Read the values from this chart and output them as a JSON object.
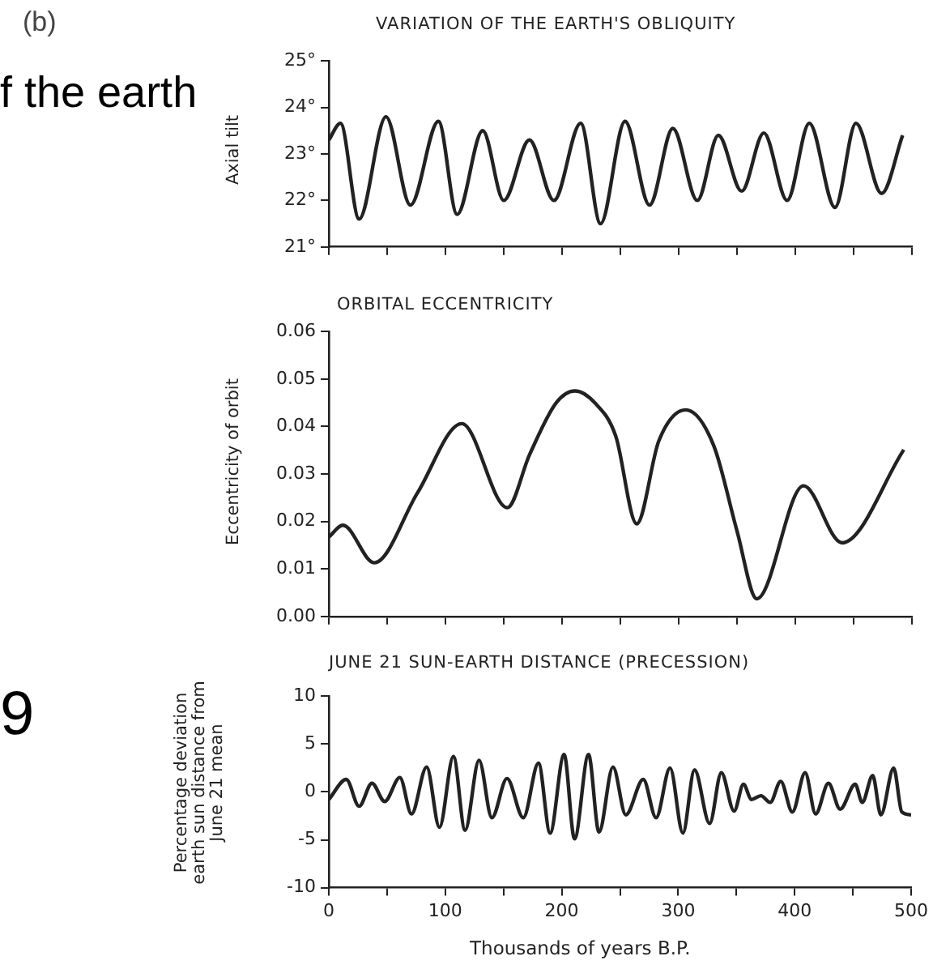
{
  "chart_data": [
    {
      "type": "line",
      "title": "VARIATION OF THE EARTH'S OBLIQUITY",
      "ylabel": "Axial tilt",
      "color": "#222222",
      "marker": "none",
      "tick_labels": "y",
      "annotations": [
        "(b)",
        "f the earth"
      ],
      "x": [
        0,
        10,
        26,
        49,
        70,
        94,
        110,
        132,
        150,
        172,
        193,
        216,
        233,
        254,
        275,
        295,
        316,
        334,
        354,
        373,
        393,
        412,
        434,
        452,
        474,
        492
      ],
      "values": [
        23.3,
        23.66,
        21.6,
        23.8,
        21.9,
        23.7,
        21.7,
        23.5,
        22.0,
        23.3,
        22.0,
        23.66,
        21.5,
        23.7,
        21.9,
        23.55,
        22.0,
        23.4,
        22.2,
        23.45,
        22.0,
        23.66,
        21.85,
        23.66,
        22.15,
        23.4
      ],
      "xlim": [
        0,
        500
      ],
      "xticks": [
        {
          "value": 0,
          "label": null
        },
        {
          "value": 50,
          "label": null
        },
        {
          "value": 100,
          "label": null
        },
        {
          "value": 150,
          "label": null
        },
        {
          "value": 200,
          "label": null
        },
        {
          "value": 250,
          "label": null
        },
        {
          "value": 300,
          "label": null
        },
        {
          "value": 350,
          "label": null
        },
        {
          "value": 400,
          "label": null
        },
        {
          "value": 450,
          "label": null
        },
        {
          "value": 500,
          "label": null
        }
      ],
      "ylim": [
        21,
        25
      ],
      "yticks": [
        {
          "value": 21,
          "label": "21°"
        },
        {
          "value": 22,
          "label": "22°"
        },
        {
          "value": 23,
          "label": "23°"
        },
        {
          "value": 24,
          "label": "24°"
        },
        {
          "value": 25,
          "label": "25°"
        }
      ]
    },
    {
      "type": "line",
      "title": "ORBITAL ECCENTRICITY",
      "ylabel": "Eccentricity of orbit",
      "color": "#222222",
      "marker": "none",
      "tick_labels": "y",
      "x": [
        0,
        12,
        39,
        76,
        114,
        153,
        172,
        195,
        211,
        228,
        246,
        264,
        283,
        306,
        330,
        350,
        367,
        407,
        440,
        493
      ],
      "values": [
        0.0167,
        0.0192,
        0.0113,
        0.026,
        0.0406,
        0.0229,
        0.034,
        0.045,
        0.0475,
        0.045,
        0.038,
        0.0195,
        0.037,
        0.0435,
        0.036,
        0.018,
        0.0037,
        0.0275,
        0.0155,
        0.0351
      ],
      "xlim": [
        0,
        500
      ],
      "xticks": [
        {
          "value": 0,
          "label": null
        },
        {
          "value": 50,
          "label": null
        },
        {
          "value": 100,
          "label": null
        },
        {
          "value": 150,
          "label": null
        },
        {
          "value": 200,
          "label": null
        },
        {
          "value": 250,
          "label": null
        },
        {
          "value": 300,
          "label": null
        },
        {
          "value": 350,
          "label": null
        },
        {
          "value": 400,
          "label": null
        },
        {
          "value": 450,
          "label": null
        },
        {
          "value": 500,
          "label": null
        }
      ],
      "ylim": [
        0,
        0.06
      ],
      "yticks": [
        {
          "value": 0,
          "label": "0.00"
        },
        {
          "value": 0.01,
          "label": "0.01"
        },
        {
          "value": 0.02,
          "label": "0.02"
        },
        {
          "value": 0.03,
          "label": "0.03"
        },
        {
          "value": 0.04,
          "label": "0.04"
        },
        {
          "value": 0.05,
          "label": "0.05"
        },
        {
          "value": 0.06,
          "label": "0.06"
        }
      ]
    },
    {
      "type": "line",
      "title": "JUNE 21 SUN-EARTH DISTANCE  (PRECESSION)",
      "ylabel": "Percentage deviation earth sun distance from June 21 mean",
      "xlabel": "Thousands of years B.P.",
      "color": "#222222",
      "marker": "none",
      "annotations": [
        "9"
      ],
      "x": [
        0,
        15,
        26,
        37,
        48,
        61,
        71,
        84,
        95,
        107,
        117,
        129,
        140,
        153,
        167,
        180,
        190,
        202,
        211,
        223,
        232,
        244,
        255,
        270,
        281,
        293,
        304,
        314,
        327,
        337,
        348,
        356,
        363,
        371,
        379,
        388,
        398,
        409,
        418,
        429,
        439,
        452,
        458,
        467,
        474,
        485,
        492,
        500
      ],
      "values": [
        -0.8,
        1.3,
        -1.5,
        0.9,
        -1.0,
        1.5,
        -2.3,
        2.6,
        -3.7,
        3.7,
        -4.0,
        3.3,
        -2.7,
        1.4,
        -2.7,
        3.0,
        -4.3,
        3.9,
        -4.9,
        3.9,
        -4.2,
        2.6,
        -2.4,
        1.3,
        -2.7,
        2.5,
        -4.3,
        2.3,
        -3.3,
        2.0,
        -2.0,
        0.8,
        -0.8,
        -0.4,
        -1.1,
        1.1,
        -2.1,
        2.0,
        -2.3,
        0.9,
        -1.8,
        0.8,
        -1.1,
        1.7,
        -2.4,
        2.5,
        -2.1,
        -2.4
      ],
      "xlim": [
        0,
        500
      ],
      "xticks": [
        0,
        {
          "value": 50,
          "label": null
        },
        100,
        {
          "value": 150,
          "label": null
        },
        200,
        {
          "value": 250,
          "label": null
        },
        300,
        {
          "value": 350,
          "label": null
        },
        400,
        {
          "value": 450,
          "label": null
        },
        500
      ],
      "ylim": [
        -10,
        10
      ],
      "yticks": [
        -10,
        -5,
        0,
        5,
        10
      ]
    }
  ]
}
